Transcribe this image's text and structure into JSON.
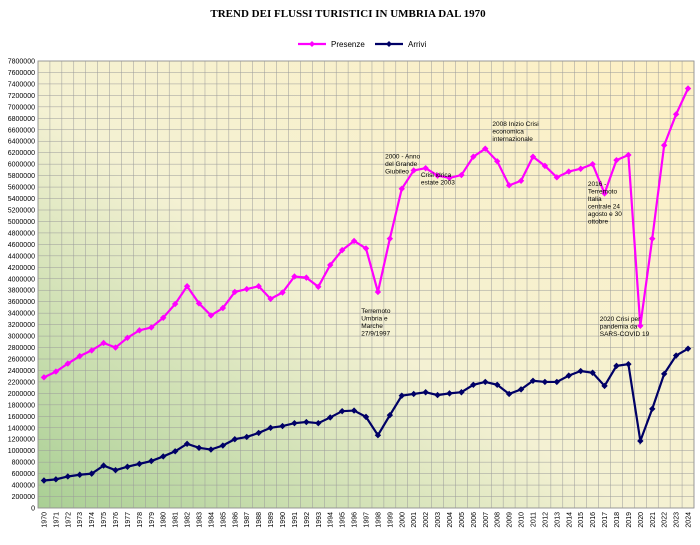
{
  "chart_data": {
    "type": "line",
    "title": "TREND DEI FLUSSI TURISTICI IN UMBRIA DAL 1970",
    "xlabel": "",
    "ylabel": "",
    "ylim": [
      0,
      7800000
    ],
    "ystep": 200000,
    "grid": true,
    "legend_position": "top-right",
    "x": [
      "1970",
      "1971",
      "1972",
      "1973",
      "1974",
      "1975",
      "1976",
      "1977",
      "1978",
      "1979",
      "1980",
      "1981",
      "1982",
      "1983",
      "1984",
      "1985",
      "1986",
      "1987",
      "1988",
      "1989",
      "1990",
      "1991",
      "1992",
      "1993",
      "1994",
      "1995",
      "1996",
      "1997",
      "1998",
      "1999",
      "2000",
      "2001",
      "2002",
      "2003",
      "2004",
      "2005",
      "2006",
      "2007",
      "2008",
      "2009",
      "2010",
      "2011",
      "2012",
      "2013",
      "2014",
      "2015",
      "2016",
      "2017",
      "2018",
      "2019",
      "2020",
      "2021",
      "2022",
      "2023",
      "2024"
    ],
    "series": [
      {
        "name": "Presenze",
        "color": "#ff00ff",
        "values": [
          2280000,
          2380000,
          2520000,
          2650000,
          2750000,
          2880000,
          2800000,
          2970000,
          3100000,
          3150000,
          3320000,
          3560000,
          3870000,
          3570000,
          3360000,
          3490000,
          3770000,
          3820000,
          3870000,
          3650000,
          3760000,
          4040000,
          4020000,
          3860000,
          4240000,
          4500000,
          4660000,
          4530000,
          3770000,
          4700000,
          5570000,
          5890000,
          5930000,
          5800000,
          5760000,
          5810000,
          6130000,
          6270000,
          6050000,
          5630000,
          5710000,
          6130000,
          5970000,
          5770000,
          5870000,
          5920000,
          6000000,
          5490000,
          6070000,
          6160000,
          3180000,
          4700000,
          6330000,
          6870000,
          7320000
        ]
      },
      {
        "name": "Arrivi",
        "color": "#000066",
        "values": [
          480000,
          500000,
          550000,
          580000,
          600000,
          740000,
          660000,
          720000,
          770000,
          820000,
          900000,
          990000,
          1120000,
          1050000,
          1020000,
          1090000,
          1200000,
          1240000,
          1310000,
          1400000,
          1430000,
          1480000,
          1500000,
          1480000,
          1580000,
          1690000,
          1700000,
          1590000,
          1270000,
          1620000,
          1960000,
          1990000,
          2020000,
          1970000,
          2000000,
          2020000,
          2150000,
          2200000,
          2150000,
          1990000,
          2070000,
          2220000,
          2200000,
          2200000,
          2310000,
          2390000,
          2360000,
          2130000,
          2480000,
          2510000,
          1170000,
          1730000,
          2340000,
          2660000,
          2780000
        ]
      }
    ],
    "annotations": [
      {
        "text": "Terremoto Umbria e Marche 27/9/1997",
        "x": "1997",
        "y": 3400000
      },
      {
        "text": "2000 - Anno del Grande Giubileo",
        "x": "1999",
        "y": 6100000
      },
      {
        "text": "Crisi idrica estate 2003",
        "x": "2002",
        "y": 5780000
      },
      {
        "text": "2008 Inizio Crisi economica internazionale",
        "x": "2008",
        "y": 6670000
      },
      {
        "text": "2016 - Terremoto Italia centrale 24 agosto e 30 ottobre",
        "x": "2016",
        "y": 5620000
      },
      {
        "text": "2020 Crisi per pandemia da SARS-COVID 19",
        "x": "2017",
        "y": 3260000
      }
    ]
  }
}
